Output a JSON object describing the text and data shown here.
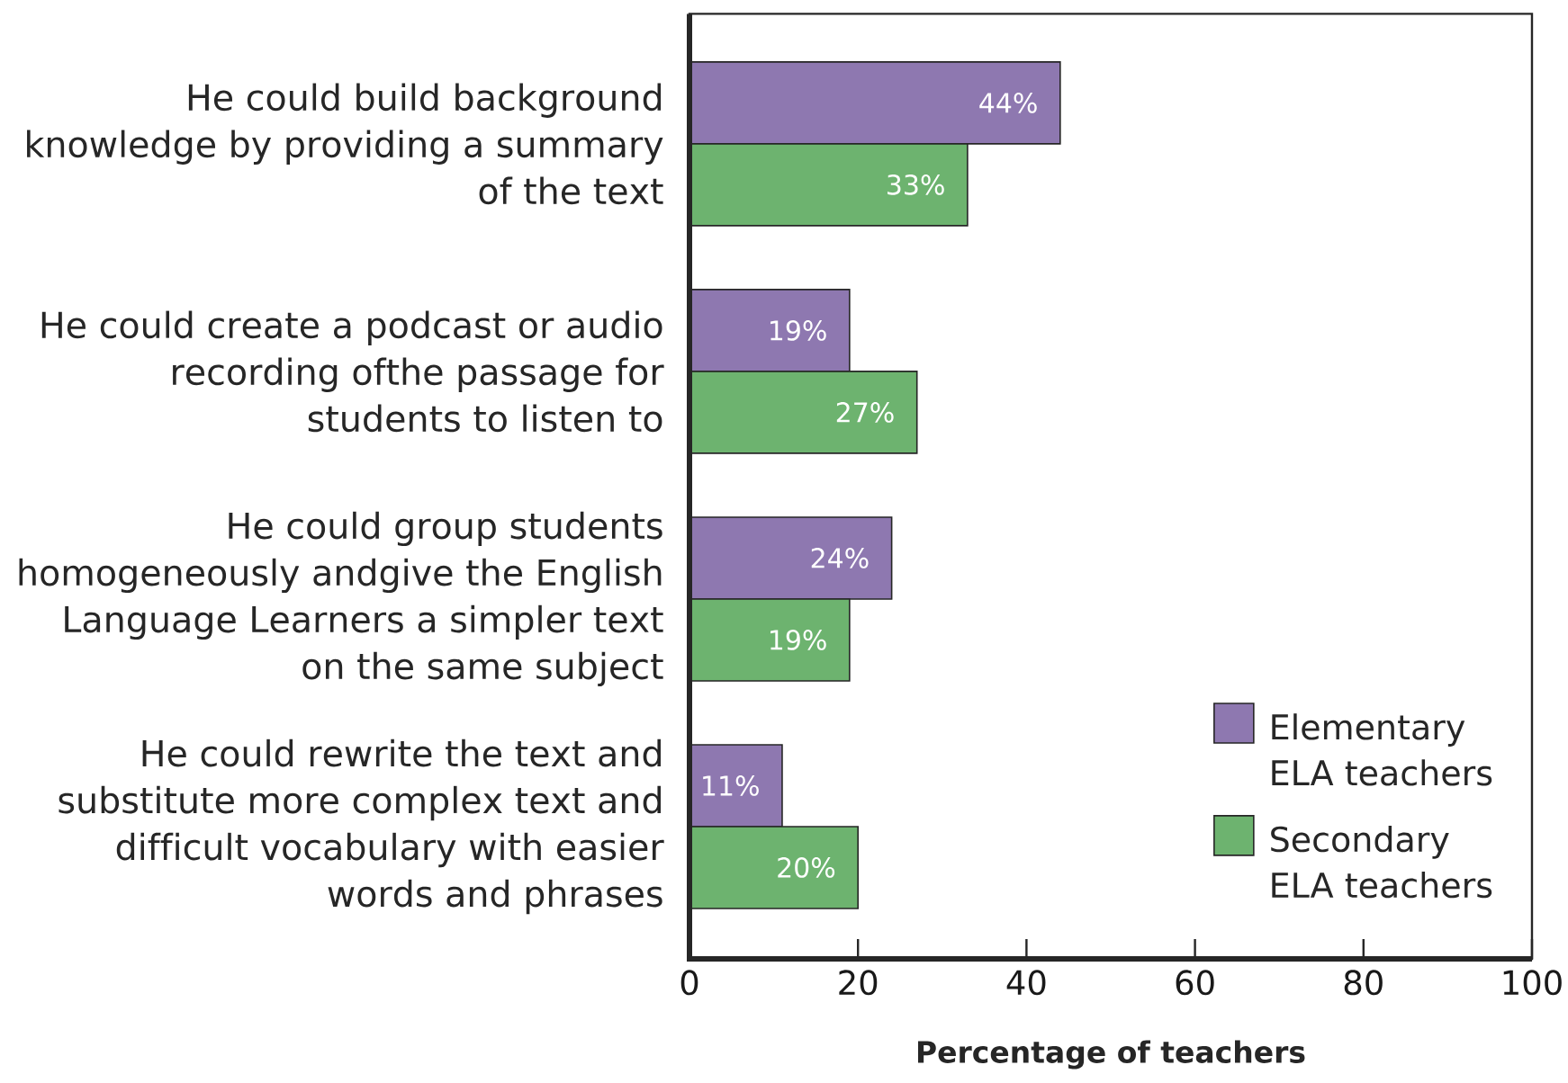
{
  "chart_data": {
    "type": "bar",
    "orientation": "horizontal",
    "categories": [
      "He could build background knowledge by providing a summary of the text",
      "He could create a podcast or audio recording ofthe passage for students to listen to",
      "He could group students homogeneously andgive the English Language Learners a simpler text on the same subject",
      "He could rewrite the text and substitute more complex text and difficult vocabulary with easier words and phrases"
    ],
    "series": [
      {
        "name": "Elementary ELA teachers",
        "color": "#8e78b0",
        "values": [
          44,
          19,
          24,
          11
        ],
        "value_labels": [
          "44%",
          "19%",
          "24%",
          "11%"
        ]
      },
      {
        "name": "Secondary ELA teachers",
        "color": "#6db36f",
        "values": [
          33,
          27,
          19,
          20
        ],
        "value_labels": [
          "33%",
          "27%",
          "19%",
          "20%"
        ]
      }
    ],
    "xlabel": "Percentage of teachers",
    "xlim": [
      0,
      100
    ],
    "xticks": [
      0,
      20,
      40,
      60,
      80,
      100
    ],
    "legend": "bottom right"
  }
}
